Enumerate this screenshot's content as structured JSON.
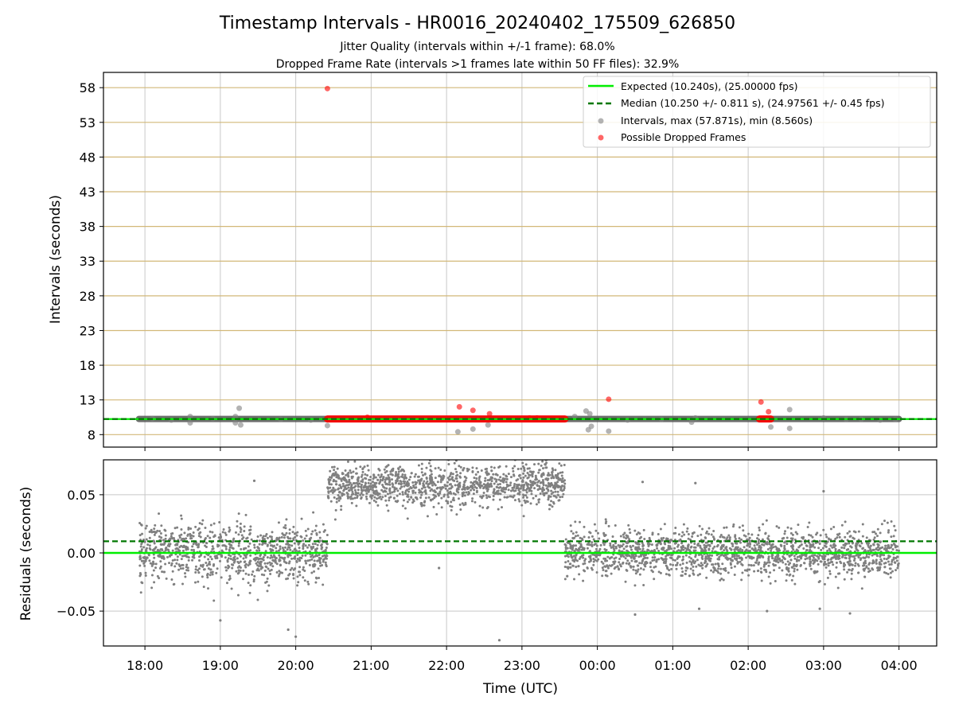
{
  "figure": {
    "title": "Timestamp Intervals - HR0016_20240402_175509_626850",
    "subtitle_1": "Jitter Quality (intervals within +/-1 frame): 68.0%",
    "subtitle_2": "Dropped Frame Rate (intervals >1 frames late within 50 FF files): 32.9%"
  },
  "colors": {
    "expected": "#00ee00",
    "median": "#007700",
    "intervals": "#808080",
    "dropped": "#ff0000",
    "hgrid_top": "#d2b878",
    "grid": "#c8c8c8",
    "band": "#555555"
  },
  "chart_data": [
    {
      "type": "scatter",
      "panel": "intervals",
      "ylabel": "Intervals (seconds)",
      "ylim": [
        6.2,
        60.2
      ],
      "yticks": [
        "58",
        "53",
        "48",
        "43",
        "38",
        "33",
        "28",
        "23",
        "18",
        "13",
        "8"
      ],
      "xlabel": "",
      "xlim_hours": [
        17.45,
        28.5
      ],
      "grid": "on",
      "legend_position": "top-right",
      "legend": [
        "Expected (10.240s), (25.00000 fps)",
        "Median (10.250 +/- 0.811 s), (24.97561 +/- 0.45 fps)",
        "Intervals, max (57.871s), min (8.560s)",
        "Possible Dropped Frames"
      ],
      "expected": 10.24,
      "median": 10.25,
      "interval_range": [
        17.92,
        28.0
      ],
      "interval_outliers": [
        [
          18.1,
          10.3
        ],
        [
          18.35,
          10.1
        ],
        [
          18.6,
          9.7
        ],
        [
          18.6,
          10.6
        ],
        [
          18.9,
          10.3
        ],
        [
          19.2,
          10.6
        ],
        [
          19.2,
          9.7
        ],
        [
          19.25,
          11.8
        ],
        [
          19.27,
          9.4
        ],
        [
          19.8,
          10.2
        ],
        [
          20.2,
          10.1
        ],
        [
          20.42,
          9.3
        ],
        [
          22.15,
          8.4
        ],
        [
          22.35,
          8.8
        ],
        [
          22.55,
          9.4
        ],
        [
          23.7,
          10.6
        ],
        [
          23.85,
          11.4
        ],
        [
          23.9,
          11.0
        ],
        [
          23.88,
          8.7
        ],
        [
          23.92,
          9.2
        ],
        [
          24.15,
          8.5
        ],
        [
          24.4,
          10.1
        ],
        [
          24.85,
          10.2
        ],
        [
          25.3,
          10.4
        ],
        [
          25.25,
          9.8
        ],
        [
          26.3,
          9.1
        ],
        [
          26.55,
          11.6
        ],
        [
          26.55,
          8.9
        ],
        [
          27.0,
          10.4
        ],
        [
          27.3,
          10.2
        ],
        [
          27.5,
          10.2
        ],
        [
          27.75,
          10.1
        ],
        [
          27.95,
          10.2
        ]
      ],
      "dropped_frames_run": [
        20.42,
        23.57
      ],
      "dropped_frames_run2": [
        26.15,
        26.3
      ],
      "dropped_outliers": [
        [
          20.42,
          57.87
        ],
        [
          22.17,
          12.0
        ],
        [
          22.35,
          11.5
        ],
        [
          22.57,
          11.0
        ],
        [
          20.95,
          10.5
        ],
        [
          24.15,
          13.1
        ],
        [
          26.17,
          12.7
        ],
        [
          26.27,
          11.3
        ],
        [
          23.1,
          10.4
        ],
        [
          23.2,
          10.4
        ],
        [
          23.4,
          10.3
        ]
      ]
    },
    {
      "type": "scatter",
      "panel": "residuals",
      "ylabel": "Residuals (seconds)",
      "ylim": [
        -0.08,
        0.08
      ],
      "yticks": [
        "0.05",
        "0.00",
        "−0.05"
      ],
      "xlabel": "Time (UTC)",
      "xticks": [
        "18:00",
        "19:00",
        "20:00",
        "21:00",
        "22:00",
        "23:00",
        "00:00",
        "01:00",
        "02:00",
        "03:00",
        "04:00"
      ],
      "expected_residual": 0.0,
      "median_residual": 0.01,
      "segments": [
        {
          "x_range": [
            17.92,
            20.42
          ],
          "center": 0.0,
          "spread": 0.022
        },
        {
          "x_range": [
            20.42,
            23.57
          ],
          "center": 0.058,
          "spread": 0.016
        },
        {
          "x_range": [
            23.57,
            28.0
          ],
          "center": 0.0,
          "spread": 0.018
        }
      ],
      "outliers": [
        [
          19.9,
          -0.066
        ],
        [
          20.0,
          -0.072
        ],
        [
          19.0,
          -0.058
        ],
        [
          22.7,
          -0.075
        ],
        [
          21.9,
          -0.013
        ],
        [
          23.6,
          -0.02
        ],
        [
          24.6,
          0.061
        ],
        [
          25.3,
          0.06
        ],
        [
          27.0,
          0.053
        ],
        [
          26.95,
          -0.048
        ],
        [
          27.35,
          -0.052
        ],
        [
          26.25,
          -0.05
        ],
        [
          24.5,
          -0.053
        ],
        [
          25.35,
          -0.048
        ],
        [
          19.45,
          0.062
        ]
      ]
    }
  ]
}
